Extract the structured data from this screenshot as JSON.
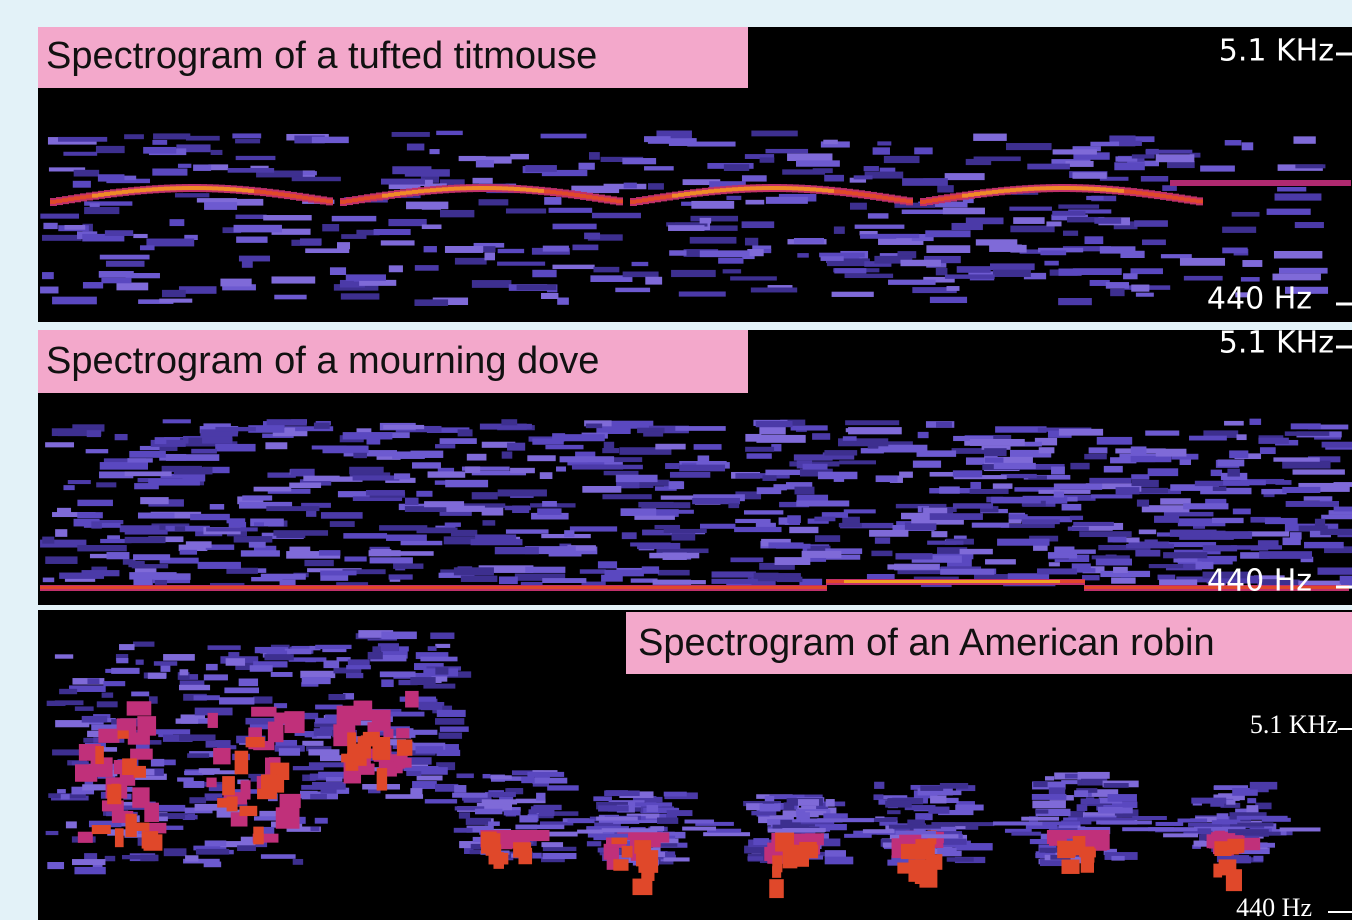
{
  "panels": [
    {
      "title": "Spectrogram of a tufted titmouse",
      "top_label": "5.1 KHz",
      "bottom_label": "440 Hz"
    },
    {
      "title": "Spectrogram of a mourning dove",
      "top_label": "5.1 KHz",
      "bottom_label": "440 Hz"
    },
    {
      "title": "Spectrogram of an American robin",
      "top_label": "5.1 KHz",
      "bottom_label": "440 Hz"
    }
  ]
}
